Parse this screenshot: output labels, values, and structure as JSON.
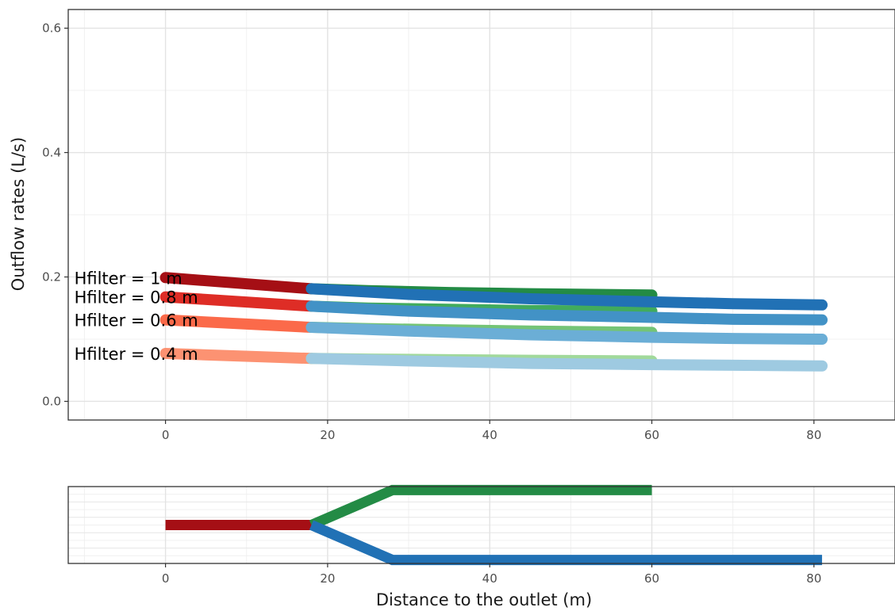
{
  "chart_data": [
    {
      "type": "line",
      "title": "",
      "xlabel": "",
      "ylabel": "Outflow rates (L/s)",
      "xlim": [
        -12,
        90
      ],
      "ylim": [
        -0.03,
        0.63
      ],
      "x_ticks": [
        0,
        20,
        40,
        60,
        80
      ],
      "y_ticks": [
        0.0,
        0.2,
        0.4,
        0.6
      ],
      "y_tick_labels": [
        "0.0",
        "0.2",
        "0.4",
        "0.6"
      ],
      "grid": true,
      "legend": "none",
      "series": [
        {
          "name": "Hfilter = 1 m",
          "group": "upstream",
          "color": "#a50f15",
          "x": [
            0,
            18
          ],
          "y": [
            0.199,
            0.181
          ]
        },
        {
          "name": "Hfilter = 0.8 m",
          "group": "upstream",
          "color": "#de2d26",
          "x": [
            0,
            18
          ],
          "y": [
            0.168,
            0.153
          ]
        },
        {
          "name": "Hfilter = 0.6 m",
          "group": "upstream",
          "color": "#fb6a4a",
          "x": [
            0,
            18
          ],
          "y": [
            0.131,
            0.119
          ]
        },
        {
          "name": "Hfilter = 0.4 m",
          "group": "upstream",
          "color": "#fc9272",
          "x": [
            0,
            18
          ],
          "y": [
            0.077,
            0.069
          ]
        },
        {
          "group": "branch-green",
          "color": "#238b45",
          "x": [
            18,
            25,
            35,
            45,
            60
          ],
          "y": [
            0.181,
            0.178,
            0.175,
            0.173,
            0.171
          ]
        },
        {
          "group": "branch-green",
          "color": "#41ab5d",
          "x": [
            18,
            25,
            35,
            45,
            60
          ],
          "y": [
            0.153,
            0.15,
            0.148,
            0.146,
            0.145
          ]
        },
        {
          "group": "branch-green",
          "color": "#74c476",
          "x": [
            18,
            25,
            35,
            45,
            60
          ],
          "y": [
            0.119,
            0.117,
            0.115,
            0.113,
            0.111
          ]
        },
        {
          "group": "branch-green",
          "color": "#a1d99b",
          "x": [
            18,
            25,
            35,
            45,
            60
          ],
          "y": [
            0.069,
            0.068,
            0.067,
            0.066,
            0.065
          ]
        },
        {
          "group": "branch-blue",
          "color": "#2171b5",
          "x": [
            18,
            30,
            45,
            60,
            70,
            81
          ],
          "y": [
            0.181,
            0.172,
            0.165,
            0.16,
            0.157,
            0.155
          ]
        },
        {
          "group": "branch-blue",
          "color": "#4292c6",
          "x": [
            18,
            30,
            45,
            60,
            70,
            81
          ],
          "y": [
            0.153,
            0.145,
            0.139,
            0.135,
            0.132,
            0.131
          ]
        },
        {
          "group": "branch-blue",
          "color": "#6baed6",
          "x": [
            18,
            30,
            45,
            60,
            70,
            81
          ],
          "y": [
            0.119,
            0.113,
            0.107,
            0.103,
            0.101,
            0.1
          ]
        },
        {
          "group": "branch-blue",
          "color": "#9ecae1",
          "x": [
            18,
            30,
            45,
            60,
            70,
            81
          ],
          "y": [
            0.069,
            0.065,
            0.061,
            0.059,
            0.058,
            0.057
          ]
        }
      ],
      "annotations": [
        "Hfilter = 1 m",
        "Hfilter = 0.8 m",
        "Hfilter = 0.6 m",
        "Hfilter = 0.4 m"
      ]
    },
    {
      "type": "line",
      "title": "",
      "xlabel": "Distance to the outlet (m)",
      "ylabel": "",
      "xlim": [
        -12,
        90
      ],
      "ylim": [
        -1.1,
        1.1
      ],
      "x_ticks": [
        0,
        20,
        40,
        60,
        80
      ],
      "grid": true,
      "legend": "none",
      "series": [
        {
          "group": "upstream",
          "color": "#a50f15",
          "x": [
            0,
            18
          ],
          "y": [
            0,
            0
          ]
        },
        {
          "group": "branch-green",
          "color": "#238b45",
          "x": [
            18,
            28,
            60
          ],
          "y": [
            0,
            1,
            1
          ]
        },
        {
          "group": "branch-blue",
          "color": "#2171b5",
          "x": [
            18,
            28,
            81
          ],
          "y": [
            0,
            -1,
            -1
          ]
        }
      ]
    }
  ]
}
